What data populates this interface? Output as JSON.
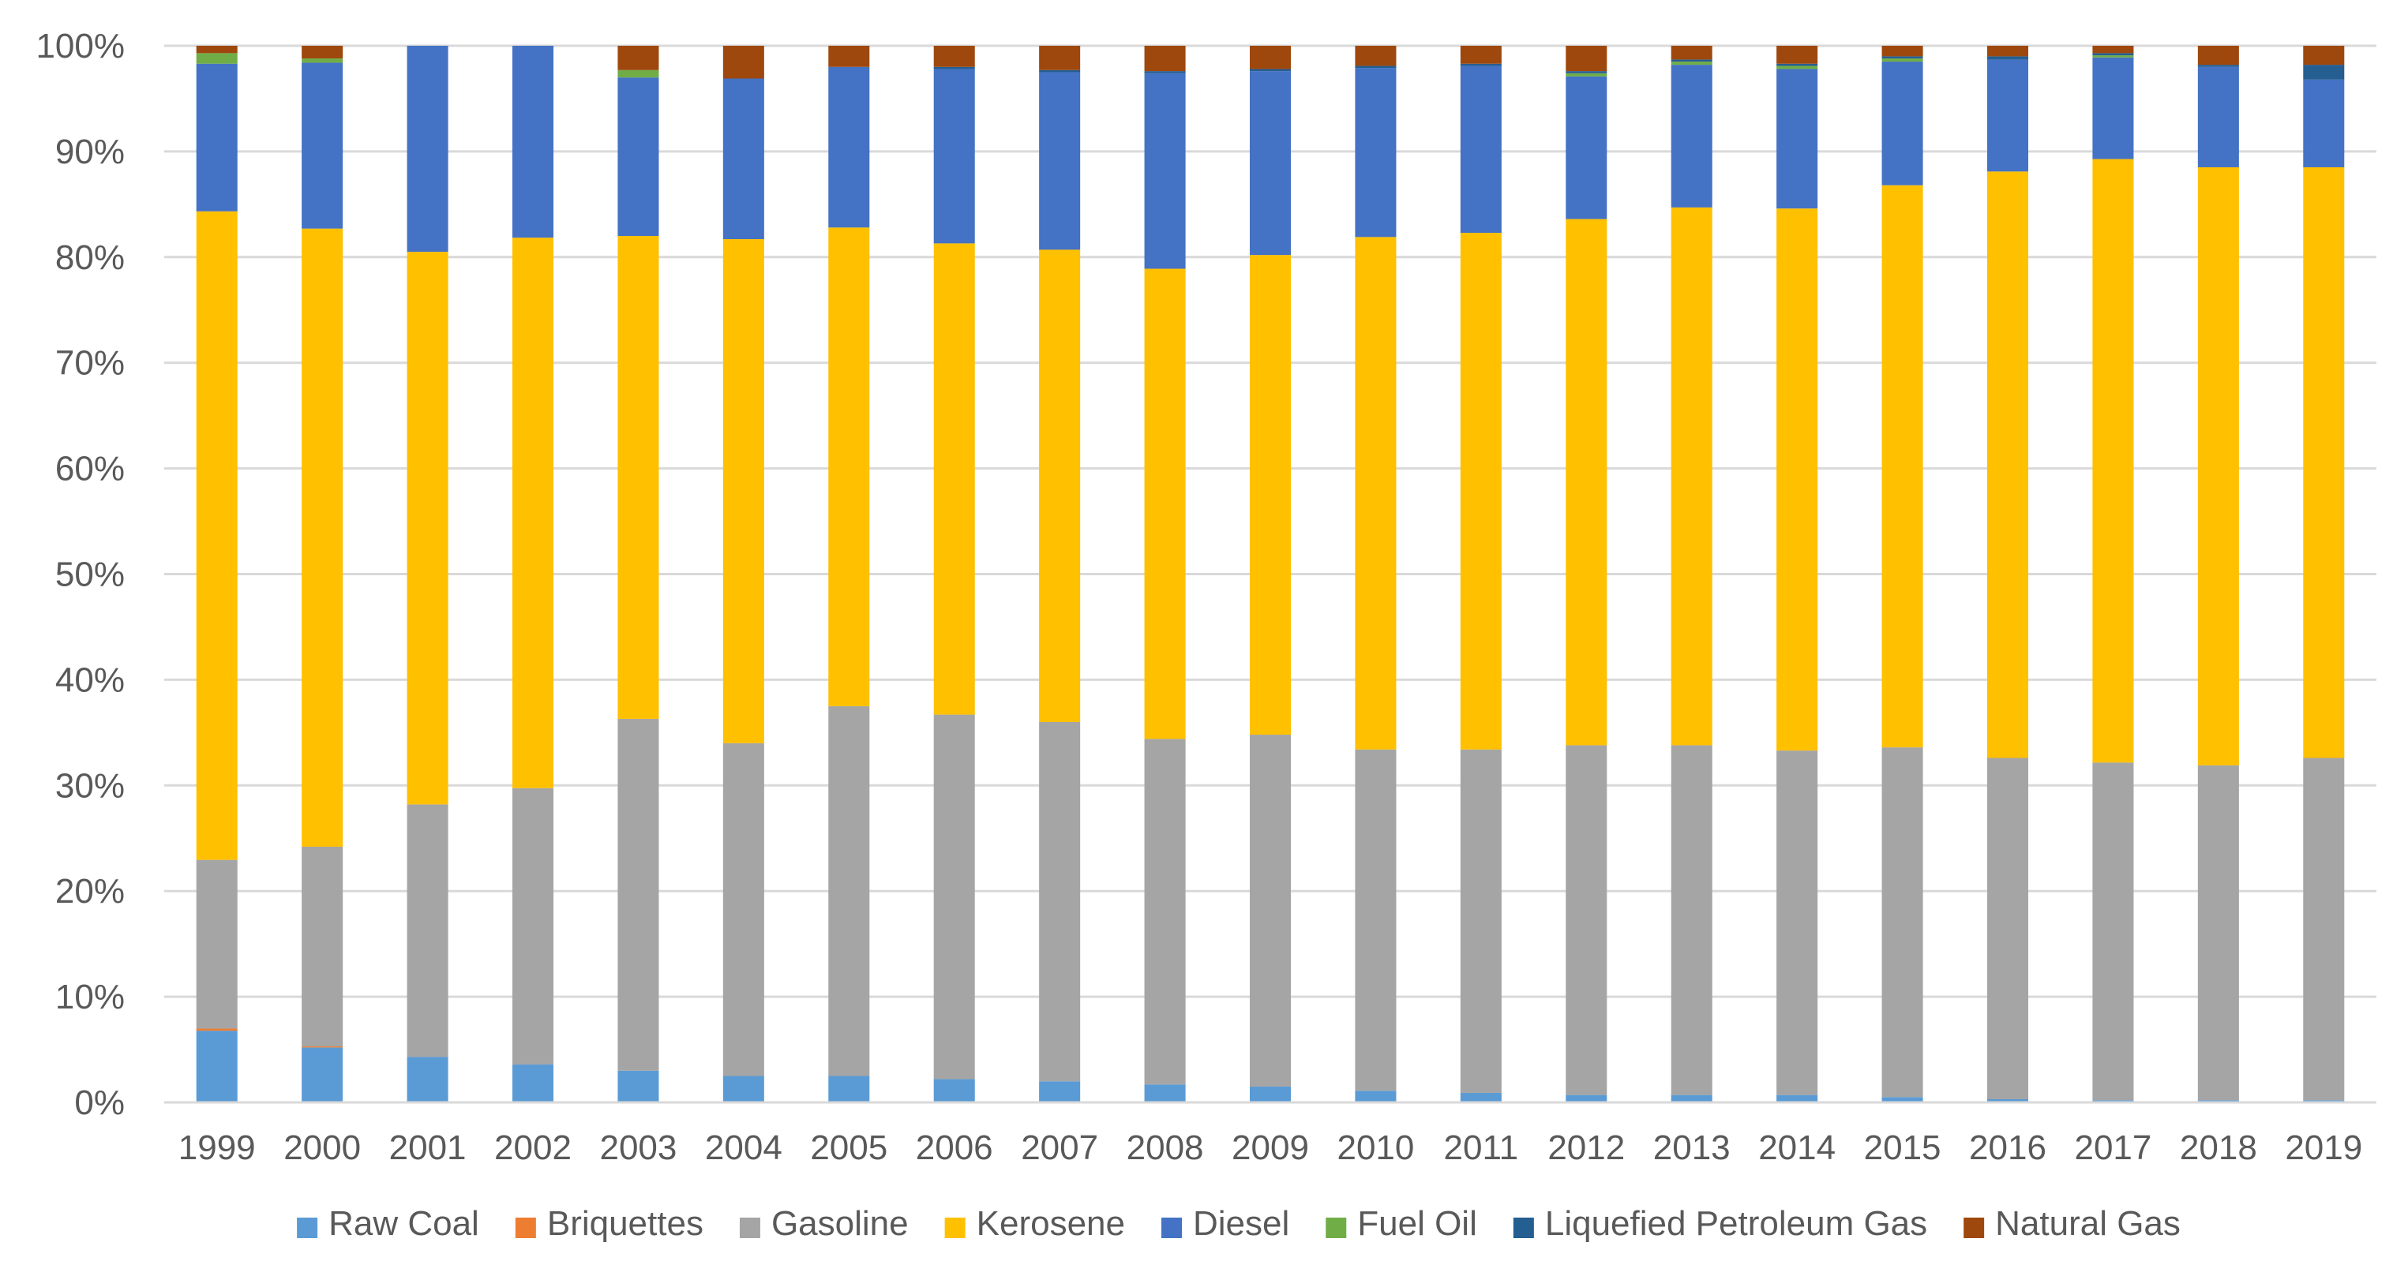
{
  "chart_data": {
    "type": "bar",
    "stacked": true,
    "normalized": true,
    "title": "",
    "xlabel": "",
    "ylabel": "",
    "ylim": [
      0,
      100
    ],
    "yticks": [
      "0%",
      "10%",
      "20%",
      "30%",
      "40%",
      "50%",
      "60%",
      "70%",
      "80%",
      "90%",
      "100%"
    ],
    "grid": true,
    "legend_position": "bottom",
    "categories": [
      "1999",
      "2000",
      "2001",
      "2002",
      "2003",
      "2004",
      "2005",
      "2006",
      "2007",
      "2008",
      "2009",
      "2010",
      "2011",
      "2012",
      "2013",
      "2014",
      "2015",
      "2016",
      "2017",
      "2018",
      "2019"
    ],
    "series": [
      {
        "name": "Raw Coal",
        "color": "#5B9BD5",
        "values": [
          6.8,
          5.2,
          4.3,
          3.6,
          3.0,
          2.5,
          2.5,
          2.2,
          2.0,
          1.7,
          1.5,
          1.1,
          0.9,
          0.7,
          0.7,
          0.7,
          0.5,
          0.3,
          0.2,
          0.2,
          0.2
        ]
      },
      {
        "name": "Briquettes",
        "color": "#ED7D31",
        "values": [
          0.2,
          0.1,
          0.0,
          0.0,
          0.0,
          0.0,
          0.0,
          0.0,
          0.0,
          0.0,
          0.0,
          0.0,
          0.0,
          0.0,
          0.0,
          0.0,
          0.0,
          0.0,
          0.0,
          0.0,
          0.0
        ]
      },
      {
        "name": "Gasoline",
        "color": "#A5A5A5",
        "values": [
          16.0,
          18.9,
          23.9,
          26.2,
          33.3,
          31.5,
          35.0,
          34.5,
          34.0,
          32.7,
          33.3,
          32.3,
          32.5,
          33.1,
          33.1,
          32.6,
          33.1,
          32.3,
          31.9,
          31.7,
          32.4
        ]
      },
      {
        "name": "Kerosene",
        "color": "#FFC000",
        "values": [
          61.5,
          58.5,
          52.3,
          52.2,
          45.7,
          47.7,
          45.3,
          44.6,
          44.7,
          44.5,
          45.4,
          48.5,
          48.9,
          49.8,
          50.9,
          51.3,
          53.2,
          55.5,
          57.0,
          56.6,
          55.9
        ]
      },
      {
        "name": "Diesel",
        "color": "#4472C4",
        "values": [
          14.0,
          15.7,
          19.5,
          18.2,
          15.0,
          15.2,
          15.2,
          16.5,
          16.8,
          18.5,
          17.4,
          16.0,
          15.8,
          13.5,
          13.5,
          13.2,
          11.7,
          10.6,
          9.6,
          9.5,
          8.3
        ]
      },
      {
        "name": "Fuel Oil",
        "color": "#70AD47",
        "values": [
          1.0,
          0.4,
          0.0,
          0.0,
          0.7,
          0.0,
          0.0,
          0.0,
          0.0,
          0.0,
          0.0,
          0.0,
          0.0,
          0.3,
          0.3,
          0.3,
          0.3,
          0.0,
          0.2,
          0.0,
          0.0
        ]
      },
      {
        "name": "Liquefied Petroleum Gas",
        "color": "#255E91",
        "values": [
          0.0,
          0.0,
          0.0,
          0.0,
          0.0,
          0.0,
          0.0,
          0.2,
          0.2,
          0.2,
          0.2,
          0.2,
          0.2,
          0.2,
          0.2,
          0.2,
          0.2,
          0.3,
          0.2,
          0.2,
          1.4
        ]
      },
      {
        "name": "Natural Gas",
        "color": "#9E480E",
        "values": [
          0.7,
          1.2,
          0.0,
          0.0,
          2.3,
          3.1,
          2.0,
          2.0,
          2.3,
          2.4,
          2.2,
          1.9,
          1.7,
          2.4,
          1.3,
          1.7,
          1.0,
          1.0,
          0.7,
          1.8,
          1.8
        ]
      }
    ]
  }
}
